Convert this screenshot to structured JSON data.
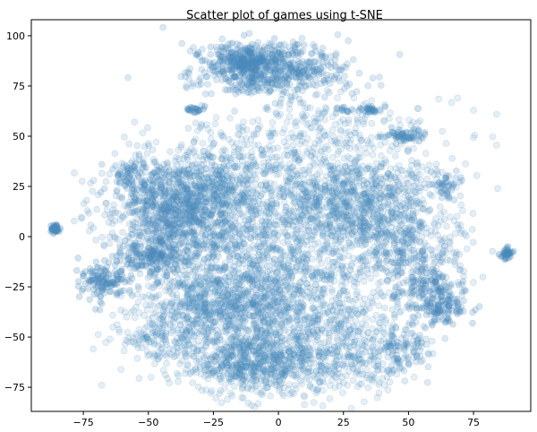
{
  "chart_data": {
    "type": "scatter",
    "title": "Scatter plot of games using t-SNE",
    "xlabel": "",
    "ylabel": "",
    "xlim": [
      -95,
      97
    ],
    "ylim": [
      -87,
      108
    ],
    "x_ticks": [
      -75,
      -50,
      -25,
      0,
      25,
      50,
      75
    ],
    "y_ticks": [
      -75,
      -50,
      -25,
      0,
      25,
      50,
      75,
      100
    ],
    "grid": false,
    "point_color": "#4a8bbd",
    "point_opacity": 0.16,
    "point_stroke_opacity": 0.24,
    "clusters": [
      {
        "center": [
          -3,
          82
        ],
        "spread": [
          14,
          7
        ],
        "count": 550,
        "opacity": 0.2
      },
      {
        "center": [
          -8,
          89
        ],
        "spread": [
          10,
          4
        ],
        "count": 180,
        "opacity": 0.24
      },
      {
        "center": [
          -86,
          4
        ],
        "spread": [
          1,
          1
        ],
        "count": 40,
        "opacity": 0.35
      },
      {
        "center": [
          88,
          -8
        ],
        "spread": [
          1.2,
          1.2
        ],
        "count": 40,
        "opacity": 0.35
      },
      {
        "center": [
          -67,
          -22
        ],
        "spread": [
          4.5,
          5
        ],
        "count": 140,
        "opacity": 0.25
      },
      {
        "center": [
          -55,
          30
        ],
        "spread": [
          5,
          4
        ],
        "count": 70,
        "opacity": 0.23
      },
      {
        "center": [
          -48,
          -10
        ],
        "spread": [
          5,
          4
        ],
        "count": 120,
        "opacity": 0.24
      },
      {
        "center": [
          -40,
          10
        ],
        "spread": [
          13,
          15
        ],
        "count": 1200,
        "opacity": 0.16
      },
      {
        "center": [
          -20,
          25
        ],
        "spread": [
          12,
          13
        ],
        "count": 500,
        "opacity": 0.14
      },
      {
        "center": [
          -5,
          -8
        ],
        "spread": [
          16,
          14
        ],
        "count": 500,
        "opacity": 0.14
      },
      {
        "center": [
          -28,
          -34
        ],
        "spread": [
          12,
          10
        ],
        "count": 500,
        "opacity": 0.14
      },
      {
        "center": [
          -8,
          -30
        ],
        "spread": [
          10,
          8
        ],
        "count": 220,
        "opacity": 0.16
      },
      {
        "center": [
          -10,
          -62
        ],
        "spread": [
          13,
          8
        ],
        "count": 700,
        "opacity": 0.15
      },
      {
        "center": [
          15,
          -40
        ],
        "spread": [
          15,
          15
        ],
        "count": 550,
        "opacity": 0.14
      },
      {
        "center": [
          18,
          20
        ],
        "spread": [
          14,
          15
        ],
        "count": 650,
        "opacity": 0.14
      },
      {
        "center": [
          40,
          10
        ],
        "spread": [
          14,
          15
        ],
        "count": 700,
        "opacity": 0.15
      },
      {
        "center": [
          55,
          -15
        ],
        "spread": [
          8,
          12
        ],
        "count": 250,
        "opacity": 0.16
      },
      {
        "center": [
          62,
          -32
        ],
        "spread": [
          5.5,
          6
        ],
        "count": 170,
        "opacity": 0.24
      },
      {
        "center": [
          47,
          -55
        ],
        "spread": [
          6,
          6
        ],
        "count": 120,
        "opacity": 0.18
      },
      {
        "center": [
          48,
          50
        ],
        "spread": [
          4,
          2
        ],
        "count": 55,
        "opacity": 0.27
      },
      {
        "center": [
          -14,
          87
        ],
        "spread": [
          3,
          2
        ],
        "count": 60,
        "opacity": 0.28
      },
      {
        "center": [
          -33,
          63
        ],
        "spread": [
          2,
          1
        ],
        "count": 20,
        "opacity": 0.32
      },
      {
        "center": [
          35,
          63
        ],
        "spread": [
          2,
          1
        ],
        "count": 22,
        "opacity": 0.32
      },
      {
        "center": [
          25,
          63
        ],
        "spread": [
          2,
          1
        ],
        "count": 12,
        "opacity": 0.28
      },
      {
        "center": [
          65,
          25
        ],
        "spread": [
          3,
          3
        ],
        "count": 40,
        "opacity": 0.23
      },
      {
        "center": [
          20,
          55
        ],
        "spread": [
          25,
          8
        ],
        "count": 180,
        "opacity": 0.14
      },
      {
        "center": [
          -45,
          -50
        ],
        "spread": [
          10,
          8
        ],
        "count": 180,
        "opacity": 0.14
      },
      {
        "center": [
          25,
          -62
        ],
        "spread": [
          12,
          10
        ],
        "count": 220,
        "opacity": 0.14
      }
    ]
  }
}
